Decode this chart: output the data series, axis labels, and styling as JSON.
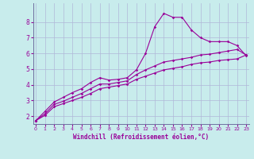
{
  "xlabel": "Windchill (Refroidissement éolien,°C)",
  "ylabel": "",
  "background_color": "#c8ecec",
  "line_color": "#990099",
  "x_ticks": [
    0,
    1,
    2,
    3,
    4,
    5,
    6,
    7,
    8,
    9,
    10,
    11,
    12,
    13,
    14,
    15,
    16,
    17,
    18,
    19,
    20,
    21,
    22,
    23
  ],
  "y_ticks": [
    2,
    3,
    4,
    5,
    6,
    7,
    8
  ],
  "xlim": [
    -0.3,
    23.3
  ],
  "ylim": [
    1.5,
    9.2
  ],
  "grid_color": "#b0b8d8",
  "curve1_x": [
    0,
    1,
    2,
    3,
    4,
    5,
    6,
    7,
    8,
    9,
    10,
    11,
    12,
    13,
    14,
    15,
    16,
    17,
    18,
    19,
    20,
    21,
    22,
    23
  ],
  "curve1_y": [
    1.72,
    2.3,
    2.9,
    3.2,
    3.5,
    3.75,
    4.15,
    4.45,
    4.3,
    4.35,
    4.45,
    4.95,
    6.0,
    7.7,
    8.55,
    8.3,
    8.3,
    7.5,
    7.0,
    6.75,
    6.75,
    6.75,
    6.5,
    5.85
  ],
  "curve2_x": [
    0,
    1,
    2,
    3,
    4,
    5,
    6,
    7,
    8,
    9,
    10,
    11,
    12,
    13,
    14,
    15,
    16,
    17,
    18,
    19,
    20,
    21,
    22,
    23
  ],
  "curve2_y": [
    1.72,
    2.15,
    2.75,
    2.95,
    3.2,
    3.45,
    3.75,
    4.05,
    4.05,
    4.15,
    4.25,
    4.65,
    4.95,
    5.2,
    5.45,
    5.55,
    5.65,
    5.75,
    5.9,
    5.95,
    6.05,
    6.15,
    6.25,
    5.9
  ],
  "curve3_x": [
    0,
    1,
    2,
    3,
    4,
    5,
    6,
    7,
    8,
    9,
    10,
    11,
    12,
    13,
    14,
    15,
    16,
    17,
    18,
    19,
    20,
    21,
    22,
    23
  ],
  "curve3_y": [
    1.72,
    2.05,
    2.6,
    2.8,
    3.0,
    3.2,
    3.45,
    3.75,
    3.85,
    3.95,
    4.05,
    4.35,
    4.55,
    4.75,
    4.95,
    5.05,
    5.15,
    5.3,
    5.4,
    5.45,
    5.55,
    5.6,
    5.65,
    5.9
  ]
}
